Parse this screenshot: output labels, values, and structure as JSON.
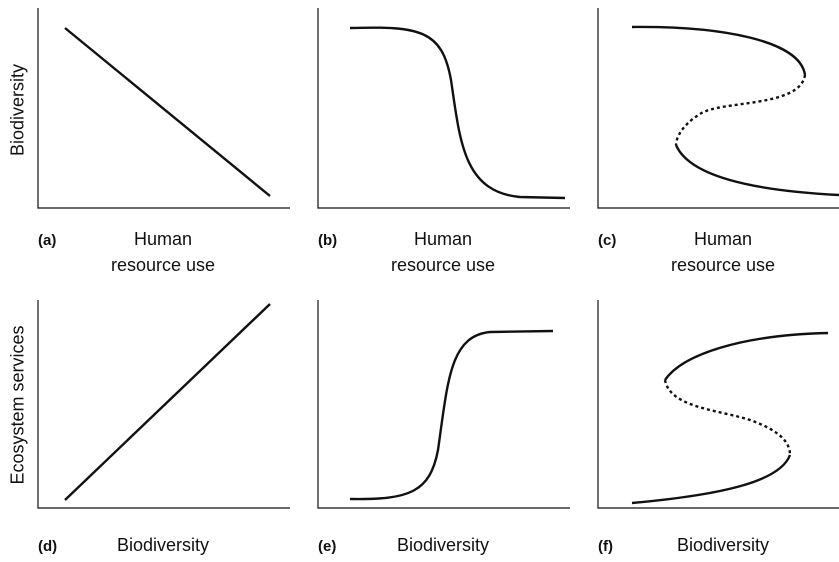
{
  "rows": [
    {
      "y_axis_label": "Biodiversity",
      "panels": [
        {
          "label": "(a)",
          "x_axis_label": "Human resource use"
        },
        {
          "label": "(b)",
          "x_axis_label": "Human resource use"
        },
        {
          "label": "(c)",
          "x_axis_label": "Human resource use"
        }
      ]
    },
    {
      "y_axis_label": "Ecosystem services",
      "panels": [
        {
          "label": "(d)",
          "x_axis_label": "Biodiversity"
        },
        {
          "label": "(e)",
          "x_axis_label": "Biodiversity"
        },
        {
          "label": "(f)",
          "x_axis_label": "Biodiversity"
        }
      ]
    }
  ]
}
